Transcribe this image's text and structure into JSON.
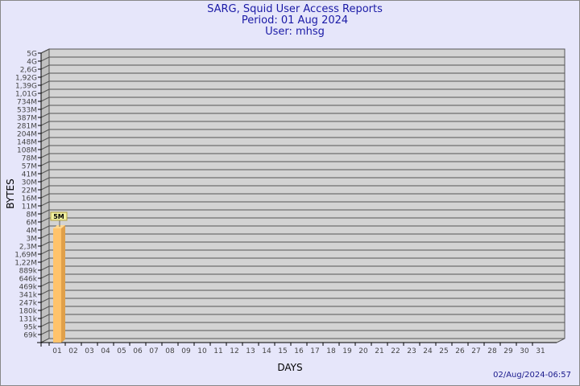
{
  "header": {
    "title": "SARG, Squid User Access Reports",
    "period": "Period: 01 Aug 2024",
    "user": "User: mhsg"
  },
  "footer": {
    "timestamp": "02/Aug/2024-06:57"
  },
  "colors": {
    "background": "#e6e6fa",
    "wall": "#d3d3d3",
    "side_wall": "#c0c0c0",
    "bar_front": "#ffc36b",
    "bar_side": "#e0a04a",
    "label_box": "#f0f0a0",
    "title": "#1a1aa6"
  },
  "chart_data": {
    "type": "bar",
    "style": "3d",
    "xlabel": "DAYS",
    "ylabel": "BYTES",
    "yscale": "log",
    "grid": true,
    "y_ticks": [
      "5G",
      "4G",
      "2,6G",
      "1,92G",
      "1,39G",
      "1,01G",
      "734M",
      "533M",
      "387M",
      "281M",
      "204M",
      "148M",
      "108M",
      "78M",
      "57M",
      "41M",
      "30M",
      "22M",
      "16M",
      "11M",
      "8M",
      "6M",
      "4M",
      "3M",
      "2,3M",
      "1,69M",
      "1,22M",
      "889k",
      "646k",
      "469k",
      "341k",
      "247k",
      "180k",
      "131k",
      "95k",
      "69k"
    ],
    "categories": [
      "01",
      "02",
      "03",
      "04",
      "05",
      "06",
      "07",
      "08",
      "09",
      "10",
      "11",
      "12",
      "13",
      "14",
      "15",
      "16",
      "17",
      "18",
      "19",
      "20",
      "21",
      "22",
      "23",
      "24",
      "25",
      "26",
      "27",
      "28",
      "29",
      "30",
      "31"
    ],
    "bars": [
      {
        "category": "01",
        "value": "5M",
        "tick_position": "between 4M and 6M"
      }
    ]
  }
}
